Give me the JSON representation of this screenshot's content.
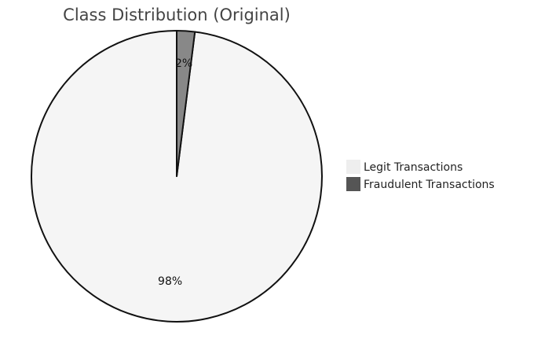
{
  "chart_data": {
    "type": "pie",
    "title": "Class Distribution (Original)",
    "categories": [
      "Legit Transactions",
      "Fraudulent Transactions"
    ],
    "values": [
      98,
      2
    ],
    "labels": [
      "98%",
      "2%"
    ],
    "colors": [
      "#f5f5f5",
      "#888888"
    ],
    "legend_colors": [
      "#eeeeee",
      "#555555"
    ],
    "legend": {
      "position": "right",
      "entries": [
        "Legit Transactions",
        "Fraudulent Transactions"
      ]
    }
  }
}
